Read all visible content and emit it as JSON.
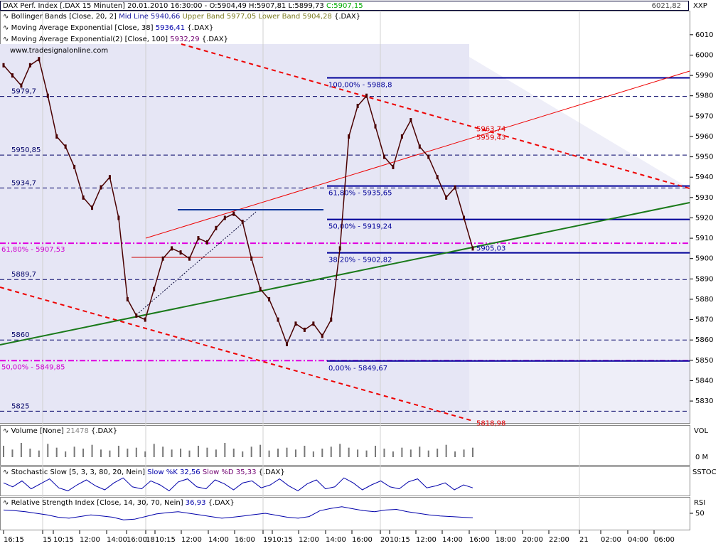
{
  "header": {
    "title": "DAX Perf. Index [.DAX  15 Minuten] 20.01.2010 16:30:00 - O:5904,49 H:5907,81 L:5899,73",
    "close": "C:5907,15",
    "last": "6021,82",
    "symbol": "XXP"
  },
  "legend": {
    "bollinger": "Bollinger Bands [Close, 20, 2]",
    "mid": "Mid Line 5940,66",
    "upper": "Upper Band 5977,05",
    "lower": "Lower Band 5904,28",
    "bollinger_src": "{.DAX}",
    "ema38": "Moving Average Exponential [Close, 38]",
    "ema38_value": "5936,41",
    "ema38_src": "{.DAX}",
    "ema100": "Moving Average Exponential(2) [Close, 100]",
    "ema100_value": "5932,29",
    "ema100_src": "{.DAX}",
    "watermark": "www.tradesignalonline.com"
  },
  "chart_data": {
    "type": "line",
    "color": "#4a0000",
    "values": [
      5995,
      5990,
      5985,
      5995,
      5998,
      5980,
      5960,
      5955,
      5945,
      5930,
      5925,
      5935,
      5940,
      5920,
      5880,
      5872,
      5870,
      5885,
      5900,
      5905,
      5903,
      5900,
      5910,
      5908,
      5915,
      5920,
      5922,
      5918,
      5900,
      5885,
      5880,
      5870,
      5858,
      5868,
      5865,
      5868,
      5862,
      5870,
      5905,
      5960,
      5975,
      5980,
      5965,
      5950,
      5945,
      5960,
      5968,
      5955,
      5950,
      5940,
      5930,
      5935,
      5920,
      5905
    ],
    "ylim": [
      5819.2,
      6021.82
    ],
    "yticks": [
      5830,
      5840,
      5850,
      5860,
      5870,
      5880,
      5890,
      5900,
      5910,
      5920,
      5930,
      5940,
      5950,
      5960,
      5970,
      5980,
      5990,
      6000,
      6010
    ],
    "xticks": [
      "16:15",
      "15",
      "10:15",
      "12:00",
      "14:00",
      "16:00",
      "18",
      "10:15",
      "12:00",
      "14:00",
      "16:00",
      "19",
      "10:15",
      "12:00",
      "14:00",
      "16:00",
      "20",
      "10:15",
      "12:00",
      "14:00",
      "16:00",
      "18:00",
      "20:00",
      "22:00",
      "21",
      "02:00",
      "04:00",
      "06:00"
    ],
    "levels": [
      {
        "value": 5979.7,
        "label": "5979,7"
      },
      {
        "value": 5950.85,
        "label": "5950,85"
      },
      {
        "value": 5934.7,
        "label": "5934,7"
      },
      {
        "value": 5889.7,
        "label": "5889,7"
      },
      {
        "value": 5860,
        "label": "5860"
      },
      {
        "value": 5825,
        "label": "5825"
      }
    ],
    "fib_source_levels": [
      {
        "value": 5907.53,
        "label": "61,80% - 5907,53"
      },
      {
        "value": 5849.85,
        "label": "50,00% - 5849,85"
      }
    ],
    "fib_levels": [
      {
        "value": 5988.8,
        "label": "100,00% - 5988,8"
      },
      {
        "value": 5935.65,
        "label": "61,80% - 5935,65"
      },
      {
        "value": 5919.24,
        "label": "50,00% - 5919,24"
      },
      {
        "value": 5902.82,
        "label": "38,20% - 5902,82"
      },
      {
        "value": 5849.67,
        "label": "0,00% - 5849,67"
      }
    ],
    "trend_labels": [
      {
        "value": 5963.74,
        "label": "5963,74"
      },
      {
        "value": 5959.43,
        "label": "5959,43"
      },
      {
        "value": 5818.98,
        "label": "5818,98"
      }
    ],
    "current_label": {
      "value": 5905.03,
      "label": "5905,03"
    }
  },
  "volume": {
    "title": "Volume [None]",
    "value": "21478",
    "src": "{.DAX}",
    "axis": "VOL",
    "values": [
      12000,
      8000,
      15000,
      9000,
      7000,
      14000,
      10000,
      6000,
      11000,
      9000,
      13000,
      8000,
      7000,
      12000,
      9000,
      10000,
      6000,
      14000,
      11000,
      8000,
      9000,
      7000,
      12000,
      10000,
      8000,
      15000,
      9000,
      6000,
      11000,
      13000,
      7000,
      9000,
      10000,
      8000,
      12000,
      6000,
      9000,
      11000,
      14000,
      10000,
      8000,
      7000,
      12000,
      9000,
      6000,
      10000,
      8000,
      11000,
      7000,
      9000,
      13000,
      6000,
      8000,
      10000
    ],
    "ylim": [
      0,
      30000
    ],
    "yticks": [
      {
        "value": 0,
        "label": "0 M"
      }
    ]
  },
  "stochastic": {
    "title": "Stochastic Slow [5, 3, 3, 80, 20, Nein]",
    "k": "Slow %K 32,56",
    "d": "Slow %D 35,33",
    "src": "{.DAX}",
    "axis": "SSTOC",
    "values": [
      60,
      40,
      70,
      30,
      55,
      80,
      35,
      20,
      50,
      75,
      45,
      25,
      60,
      85,
      40,
      30,
      70,
      50,
      20,
      65,
      80,
      40,
      30,
      75,
      55,
      25,
      60,
      70,
      35,
      50,
      80,
      45,
      20,
      55,
      75,
      30,
      40,
      85,
      60,
      25,
      50,
      70,
      40,
      30,
      65,
      80,
      35,
      45,
      60,
      25,
      50,
      35
    ],
    "ylim": [
      0,
      100
    ]
  },
  "rsi": {
    "title": "Relative Strength Index [Close, 14, 30, 70, Nein]",
    "value": "36,93",
    "src": "{.DAX}",
    "axis": "RSI",
    "values": [
      60,
      58,
      55,
      50,
      45,
      38,
      35,
      40,
      45,
      42,
      38,
      30,
      32,
      40,
      48,
      52,
      55,
      50,
      45,
      40,
      35,
      38,
      42,
      46,
      50,
      44,
      38,
      35,
      40,
      58,
      65,
      70,
      64,
      58,
      55,
      60,
      62,
      55,
      50,
      45,
      42,
      40,
      38,
      36
    ],
    "ylim": [
      0,
      100
    ],
    "yticks": [
      50
    ]
  }
}
